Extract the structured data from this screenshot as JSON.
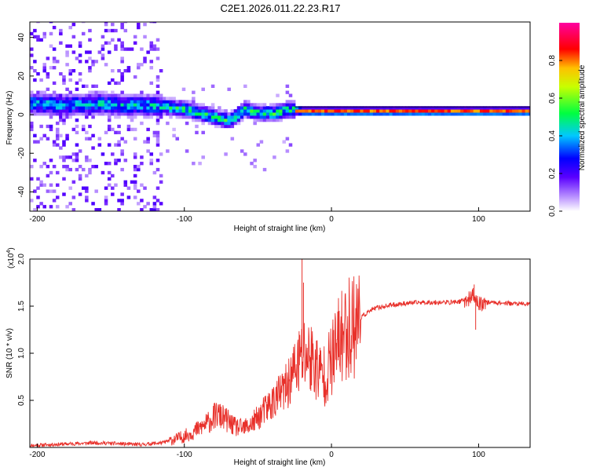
{
  "title": "C2E1.2026.011.22.23.R17",
  "chart_data": [
    {
      "type": "heatmap",
      "name": "spectrogram",
      "xlabel": "Height of straight line (km)",
      "ylabel": "Frequency (Hz)",
      "xlim": [
        -205,
        135
      ],
      "ylim": [
        -50,
        48
      ],
      "xticks": [
        -200,
        -100,
        0,
        100
      ],
      "yticks": [
        -40,
        -20,
        0,
        20,
        40
      ],
      "colorbar": {
        "label": "Normalized spectral amplitude",
        "range": [
          0,
          1
        ],
        "ticks": [
          0.0,
          0.2,
          0.4,
          0.6,
          0.8
        ]
      },
      "ridge": [
        {
          "x": -200,
          "y": 5
        },
        {
          "x": -180,
          "y": 4
        },
        {
          "x": -160,
          "y": 5
        },
        {
          "x": -140,
          "y": 4
        },
        {
          "x": -120,
          "y": 4
        },
        {
          "x": -110,
          "y": 3
        },
        {
          "x": -100,
          "y": 2
        },
        {
          "x": -90,
          "y": 0
        },
        {
          "x": -80,
          "y": -2
        },
        {
          "x": -70,
          "y": -4
        },
        {
          "x": -60,
          "y": 2
        },
        {
          "x": -50,
          "y": 0
        },
        {
          "x": -40,
          "y": 0
        },
        {
          "x": -30,
          "y": 2
        },
        {
          "x": -20,
          "y": 1
        },
        {
          "x": -10,
          "y": 1
        },
        {
          "x": 0,
          "y": 1
        },
        {
          "x": 20,
          "y": 1
        },
        {
          "x": 60,
          "y": 1
        },
        {
          "x": 100,
          "y": 1
        },
        {
          "x": 135,
          "y": 1
        }
      ]
    },
    {
      "type": "line",
      "name": "snr",
      "xlabel": "Height of straight line (km)",
      "ylabel": "SNR (10 * v/v)",
      "yscale_label": "(x10",
      "yscale_exp": "4",
      "yscale_close": ")",
      "xlim": [
        -205,
        135
      ],
      "ylim": [
        0,
        2.0
      ],
      "xticks": [
        -200,
        -100,
        0,
        100
      ],
      "yticks": [
        0.5,
        1.0,
        1.5,
        2.0
      ],
      "series": [
        {
          "name": "SNR",
          "color": "#e8302a",
          "x": [
            -205,
            -190,
            -175,
            -160,
            -145,
            -130,
            -115,
            -108,
            -100,
            -92,
            -85,
            -78,
            -72,
            -66,
            -60,
            -54,
            -48,
            -42,
            -36,
            -30,
            -26,
            -22,
            -18,
            -14,
            -10,
            -6,
            -2,
            2,
            6,
            10,
            15,
            20,
            25,
            30,
            40,
            50,
            60,
            70,
            80,
            88,
            94,
            96,
            98,
            100,
            104,
            110,
            120,
            135
          ],
          "y": [
            0.02,
            0.03,
            0.04,
            0.05,
            0.04,
            0.03,
            0.05,
            0.08,
            0.12,
            0.18,
            0.25,
            0.35,
            0.3,
            0.22,
            0.2,
            0.25,
            0.35,
            0.45,
            0.55,
            0.65,
            0.8,
            0.9,
            1.0,
            0.95,
            0.85,
            0.75,
            0.85,
            1.0,
            1.15,
            1.25,
            1.32,
            1.38,
            1.44,
            1.48,
            1.51,
            1.53,
            1.54,
            1.54,
            1.54,
            1.55,
            1.58,
            1.62,
            1.57,
            1.52,
            1.54,
            1.54,
            1.53,
            1.52
          ],
          "peaks": [
            {
              "x": -20,
              "y": 2.0
            },
            {
              "x": -19,
              "y": 1.75
            },
            {
              "x": 97,
              "y": 1.73
            },
            {
              "x": 98,
              "y": 1.25
            }
          ]
        }
      ]
    }
  ]
}
